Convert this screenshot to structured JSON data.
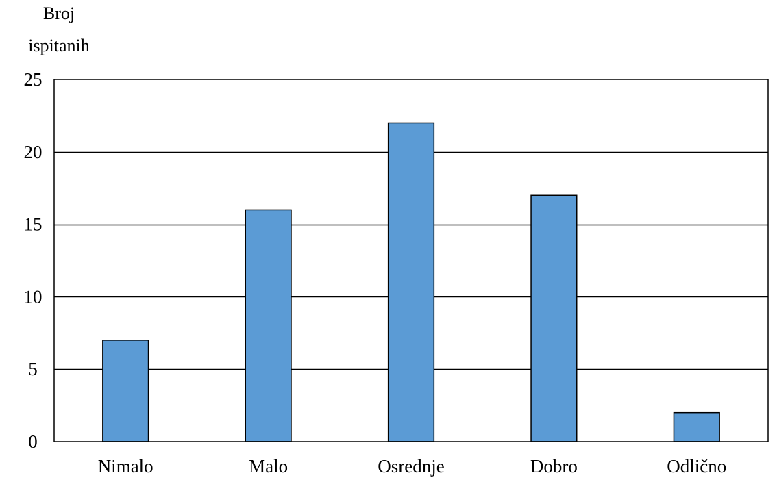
{
  "chart_data": {
    "type": "bar",
    "title": "",
    "xlabel": "",
    "ylabel": "Broj ispitanih",
    "ylabel_lines": [
      "Broj",
      "ispitanih"
    ],
    "categories": [
      "Nimalo",
      "Malo",
      "Osrednje",
      "Dobro",
      "Odlično"
    ],
    "series": [
      {
        "values": [
          7,
          16,
          22,
          17,
          2
        ]
      }
    ],
    "ylim": [
      0,
      25
    ],
    "yticks": [
      0,
      5,
      10,
      15,
      20,
      25
    ],
    "grid": true,
    "legend": "none",
    "colors": {
      "bar_fill": "#5b9bd5",
      "bar_stroke": "#000000",
      "axis": "#000000",
      "grid": "#000000"
    }
  }
}
